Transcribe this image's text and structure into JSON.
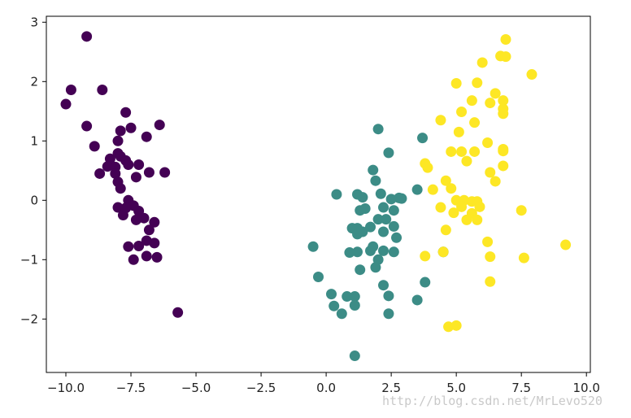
{
  "chart_data": {
    "type": "scatter",
    "title": "",
    "xlabel": "",
    "ylabel": "",
    "xlim": [
      -10.75,
      10.15
    ],
    "ylim": [
      -2.9,
      3.1
    ],
    "xticks": [
      -10.0,
      -7.5,
      -5.0,
      -2.5,
      0.0,
      2.5,
      5.0,
      7.5,
      10.0
    ],
    "xtick_labels": [
      "−10.0",
      "−7.5",
      "−5.0",
      "−2.5",
      "0.0",
      "2.5",
      "5.0",
      "7.5",
      "10.0"
    ],
    "yticks": [
      -2,
      -1,
      0,
      1,
      2,
      3
    ],
    "ytick_labels": [
      "−2",
      "−1",
      "0",
      "1",
      "2",
      "3"
    ],
    "grid": false,
    "legend": "none",
    "marker": "circle",
    "series": [
      {
        "color": "#440154",
        "points": [
          [
            -9.2,
            2.76
          ],
          [
            -9.8,
            1.86
          ],
          [
            -10.0,
            1.62
          ],
          [
            -8.6,
            1.86
          ],
          [
            -9.2,
            1.25
          ],
          [
            -7.7,
            1.48
          ],
          [
            -7.5,
            1.22
          ],
          [
            -7.9,
            1.17
          ],
          [
            -6.4,
            1.27
          ],
          [
            -6.9,
            1.07
          ],
          [
            -8.0,
            1.0
          ],
          [
            -8.9,
            0.91
          ],
          [
            -8.3,
            0.7
          ],
          [
            -8.0,
            0.79
          ],
          [
            -7.9,
            0.74
          ],
          [
            -7.7,
            0.67
          ],
          [
            -8.4,
            0.57
          ],
          [
            -8.1,
            0.56
          ],
          [
            -7.6,
            0.6
          ],
          [
            -7.2,
            0.6
          ],
          [
            -8.7,
            0.45
          ],
          [
            -8.1,
            0.45
          ],
          [
            -7.3,
            0.39
          ],
          [
            -6.8,
            0.47
          ],
          [
            -6.2,
            0.47
          ],
          [
            -8.0,
            0.31
          ],
          [
            -7.9,
            0.2
          ],
          [
            -7.6,
            0.0
          ],
          [
            -8.0,
            -0.12
          ],
          [
            -7.4,
            -0.09
          ],
          [
            -7.8,
            -0.25
          ],
          [
            -7.7,
            -0.13
          ],
          [
            -7.2,
            -0.18
          ],
          [
            -7.0,
            -0.3
          ],
          [
            -7.3,
            -0.33
          ],
          [
            -6.6,
            -0.37
          ],
          [
            -6.8,
            -0.5
          ],
          [
            -6.6,
            -0.72
          ],
          [
            -7.6,
            -0.78
          ],
          [
            -7.2,
            -0.77
          ],
          [
            -6.9,
            -0.68
          ],
          [
            -6.5,
            -0.96
          ],
          [
            -7.4,
            -1.0
          ],
          [
            -6.9,
            -0.94
          ],
          [
            -5.7,
            -1.89
          ]
        ]
      },
      {
        "color": "#3c8c86",
        "points": [
          [
            2.0,
            1.2
          ],
          [
            3.7,
            1.05
          ],
          [
            2.4,
            0.8
          ],
          [
            1.8,
            0.51
          ],
          [
            1.9,
            0.33
          ],
          [
            0.4,
            0.1
          ],
          [
            1.2,
            0.1
          ],
          [
            2.1,
            0.11
          ],
          [
            1.4,
            0.05
          ],
          [
            2.8,
            0.04
          ],
          [
            2.5,
            0.02
          ],
          [
            2.9,
            0.03
          ],
          [
            3.5,
            0.18
          ],
          [
            2.2,
            -0.12
          ],
          [
            1.5,
            -0.14
          ],
          [
            1.3,
            -0.17
          ],
          [
            2.6,
            -0.17
          ],
          [
            2.0,
            -0.32
          ],
          [
            2.3,
            -0.32
          ],
          [
            1.7,
            -0.45
          ],
          [
            1.0,
            -0.47
          ],
          [
            1.2,
            -0.47
          ],
          [
            1.4,
            -0.53
          ],
          [
            2.6,
            -0.44
          ],
          [
            2.2,
            -0.53
          ],
          [
            1.2,
            -0.57
          ],
          [
            2.7,
            -0.63
          ],
          [
            -0.5,
            -0.78
          ],
          [
            1.8,
            -0.78
          ],
          [
            1.2,
            -0.87
          ],
          [
            1.7,
            -0.85
          ],
          [
            2.2,
            -0.85
          ],
          [
            2.6,
            -0.87
          ],
          [
            0.9,
            -0.88
          ],
          [
            4.5,
            -0.87
          ],
          [
            2.0,
            -1.0
          ],
          [
            1.9,
            -1.13
          ],
          [
            1.3,
            -1.17
          ],
          [
            -0.3,
            -1.29
          ],
          [
            3.8,
            -1.38
          ],
          [
            2.2,
            -1.43
          ],
          [
            2.4,
            -1.61
          ],
          [
            0.2,
            -1.58
          ],
          [
            0.8,
            -1.62
          ],
          [
            1.1,
            -1.62
          ],
          [
            3.5,
            -1.68
          ],
          [
            0.3,
            -1.78
          ],
          [
            1.1,
            -1.77
          ],
          [
            0.6,
            -1.91
          ],
          [
            2.4,
            -1.91
          ],
          [
            1.1,
            -2.62
          ]
        ]
      },
      {
        "color": "#fde725",
        "points": [
          [
            6.9,
            2.71
          ],
          [
            6.7,
            2.43
          ],
          [
            6.9,
            2.42
          ],
          [
            6.0,
            2.32
          ],
          [
            7.9,
            2.12
          ],
          [
            5.0,
            1.97
          ],
          [
            5.8,
            1.98
          ],
          [
            6.5,
            1.8
          ],
          [
            6.8,
            1.68
          ],
          [
            5.6,
            1.68
          ],
          [
            6.3,
            1.64
          ],
          [
            6.8,
            1.54
          ],
          [
            5.2,
            1.49
          ],
          [
            6.8,
            1.46
          ],
          [
            4.4,
            1.35
          ],
          [
            5.7,
            1.31
          ],
          [
            5.1,
            1.15
          ],
          [
            6.2,
            0.97
          ],
          [
            6.8,
            0.86
          ],
          [
            6.8,
            0.83
          ],
          [
            4.8,
            0.82
          ],
          [
            5.2,
            0.82
          ],
          [
            5.7,
            0.82
          ],
          [
            5.4,
            0.66
          ],
          [
            3.8,
            0.62
          ],
          [
            3.9,
            0.55
          ],
          [
            6.8,
            0.58
          ],
          [
            6.3,
            0.47
          ],
          [
            4.6,
            0.33
          ],
          [
            6.5,
            0.32
          ],
          [
            4.1,
            0.18
          ],
          [
            4.8,
            0.2
          ],
          [
            5.0,
            0.0
          ],
          [
            5.3,
            0.0
          ],
          [
            5.6,
            -0.02
          ],
          [
            5.8,
            -0.02
          ],
          [
            4.4,
            -0.12
          ],
          [
            5.2,
            -0.11
          ],
          [
            5.9,
            -0.11
          ],
          [
            4.9,
            -0.21
          ],
          [
            5.6,
            -0.22
          ],
          [
            7.5,
            -0.17
          ],
          [
            5.4,
            -0.33
          ],
          [
            5.8,
            -0.33
          ],
          [
            4.6,
            -0.5
          ],
          [
            6.2,
            -0.7
          ],
          [
            9.2,
            -0.75
          ],
          [
            4.5,
            -0.87
          ],
          [
            3.8,
            -0.94
          ],
          [
            6.3,
            -0.95
          ],
          [
            7.6,
            -0.97
          ],
          [
            6.3,
            -1.37
          ],
          [
            4.7,
            -2.13
          ],
          [
            5.0,
            -2.11
          ]
        ]
      }
    ]
  },
  "watermark": {
    "text": "http://blog.csdn.net/MrLevo520"
  }
}
